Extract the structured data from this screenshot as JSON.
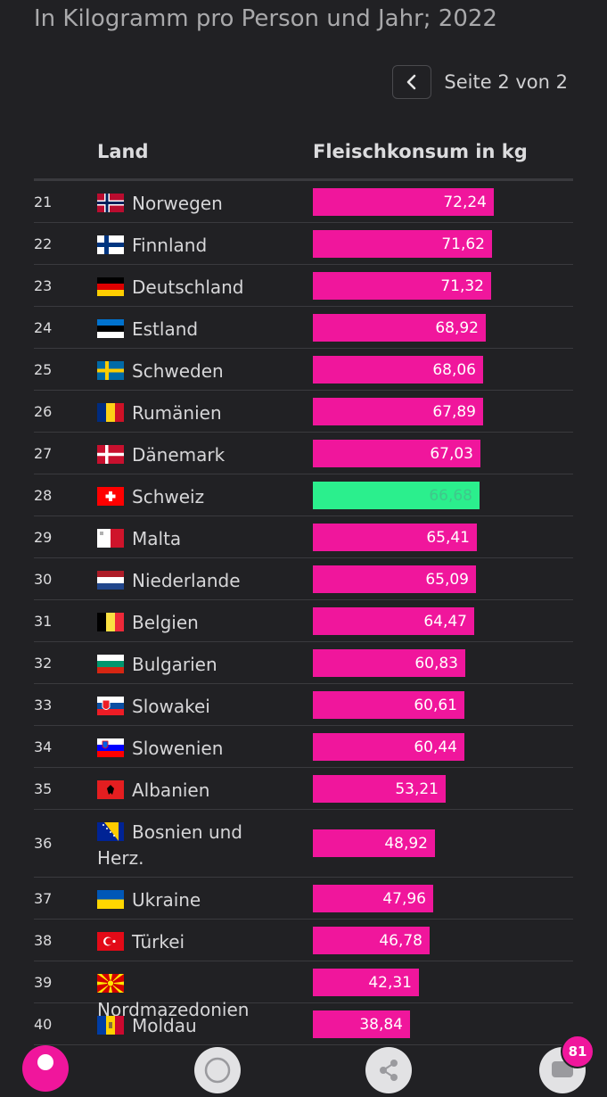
{
  "subtitle": "In Kilogramm pro Person und Jahr; 2022",
  "pager": {
    "text": "Seite 2 von 2"
  },
  "table": {
    "col_land": "Land",
    "col_value": "Fleischkonsum in kg"
  },
  "badge_count": "81",
  "colors": {
    "bar": "#f0169c",
    "highlight": "#2bef8d",
    "background": "#212124"
  },
  "chart_data": {
    "type": "bar",
    "orientation": "horizontal",
    "title": "",
    "subtitle": "In Kilogramm pro Person und Jahr; 2022",
    "xlabel": "Fleischkonsum in kg",
    "ylabel": "Land",
    "xlim": [
      0,
      104
    ],
    "highlight": "Schweiz",
    "rows": [
      {
        "rank": "21",
        "country": "Norwegen",
        "value": 72.24,
        "label": "72,24",
        "flag": "norway-flag-icon"
      },
      {
        "rank": "22",
        "country": "Finnland",
        "value": 71.62,
        "label": "71,62",
        "flag": "finland-flag-icon"
      },
      {
        "rank": "23",
        "country": "Deutschland",
        "value": 71.32,
        "label": "71,32",
        "flag": "germany-flag-icon"
      },
      {
        "rank": "24",
        "country": "Estland",
        "value": 68.92,
        "label": "68,92",
        "flag": "estonia-flag-icon"
      },
      {
        "rank": "25",
        "country": "Schweden",
        "value": 68.06,
        "label": "68,06",
        "flag": "sweden-flag-icon"
      },
      {
        "rank": "26",
        "country": "Rumänien",
        "value": 67.89,
        "label": "67,89",
        "flag": "romania-flag-icon"
      },
      {
        "rank": "27",
        "country": "Dänemark",
        "value": 67.03,
        "label": "67,03",
        "flag": "denmark-flag-icon"
      },
      {
        "rank": "28",
        "country": "Schweiz",
        "value": 66.68,
        "label": "66,68",
        "flag": "switzerland-flag-icon",
        "highlight": true
      },
      {
        "rank": "29",
        "country": "Malta",
        "value": 65.41,
        "label": "65,41",
        "flag": "malta-flag-icon"
      },
      {
        "rank": "30",
        "country": "Niederlande",
        "value": 65.09,
        "label": "65,09",
        "flag": "netherlands-flag-icon"
      },
      {
        "rank": "31",
        "country": "Belgien",
        "value": 64.47,
        "label": "64,47",
        "flag": "belgium-flag-icon"
      },
      {
        "rank": "32",
        "country": "Bulgarien",
        "value": 60.83,
        "label": "60,83",
        "flag": "bulgaria-flag-icon"
      },
      {
        "rank": "33",
        "country": "Slowakei",
        "value": 60.61,
        "label": "60,61",
        "flag": "slovakia-flag-icon"
      },
      {
        "rank": "34",
        "country": "Slowenien",
        "value": 60.44,
        "label": "60,44",
        "flag": "slovenia-flag-icon"
      },
      {
        "rank": "35",
        "country": "Albanien",
        "value": 53.21,
        "label": "53,21",
        "flag": "albania-flag-icon"
      },
      {
        "rank": "36",
        "country": "Bosnien und Herz.",
        "value": 48.92,
        "label": "48,92",
        "flag": "bosnia-flag-icon"
      },
      {
        "rank": "37",
        "country": "Ukraine",
        "value": 47.96,
        "label": "47,96",
        "flag": "ukraine-flag-icon"
      },
      {
        "rank": "38",
        "country": "Türkei",
        "value": 46.78,
        "label": "46,78",
        "flag": "turkey-flag-icon"
      },
      {
        "rank": "39",
        "country": "Nordmazedonien",
        "value": 42.31,
        "label": "42,31",
        "flag": "north-macedonia-flag-icon"
      },
      {
        "rank": "40",
        "country": "Moldau",
        "value": 38.84,
        "label": "38,84",
        "flag": "moldova-flag-icon"
      }
    ]
  }
}
